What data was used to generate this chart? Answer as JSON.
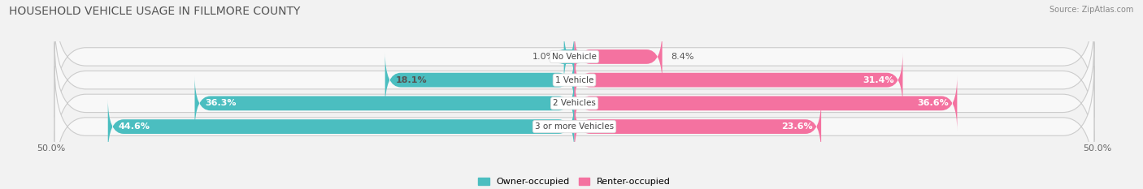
{
  "title": "HOUSEHOLD VEHICLE USAGE IN FILLMORE COUNTY",
  "source": "Source: ZipAtlas.com",
  "categories": [
    "No Vehicle",
    "1 Vehicle",
    "2 Vehicles",
    "3 or more Vehicles"
  ],
  "owner_values": [
    1.0,
    18.1,
    36.3,
    44.6
  ],
  "renter_values": [
    8.4,
    31.4,
    36.6,
    23.6
  ],
  "owner_color": "#4BBEC0",
  "renter_color": "#F472A0",
  "owner_label": "Owner-occupied",
  "renter_label": "Renter-occupied",
  "xlim_left": -50,
  "xlim_right": 50,
  "bar_height": 0.62,
  "row_bg_color": "#e8e8e8",
  "fig_bg_color": "#f2f2f2",
  "title_fontsize": 10,
  "val_fontsize": 8,
  "cat_fontsize": 7.5,
  "source_fontsize": 7,
  "legend_fontsize": 8,
  "owner_val_colors": [
    "#555555",
    "#555555",
    "#ffffff",
    "#ffffff"
  ],
  "renter_val_colors": [
    "#555555",
    "#555555",
    "#ffffff",
    "#555555"
  ]
}
